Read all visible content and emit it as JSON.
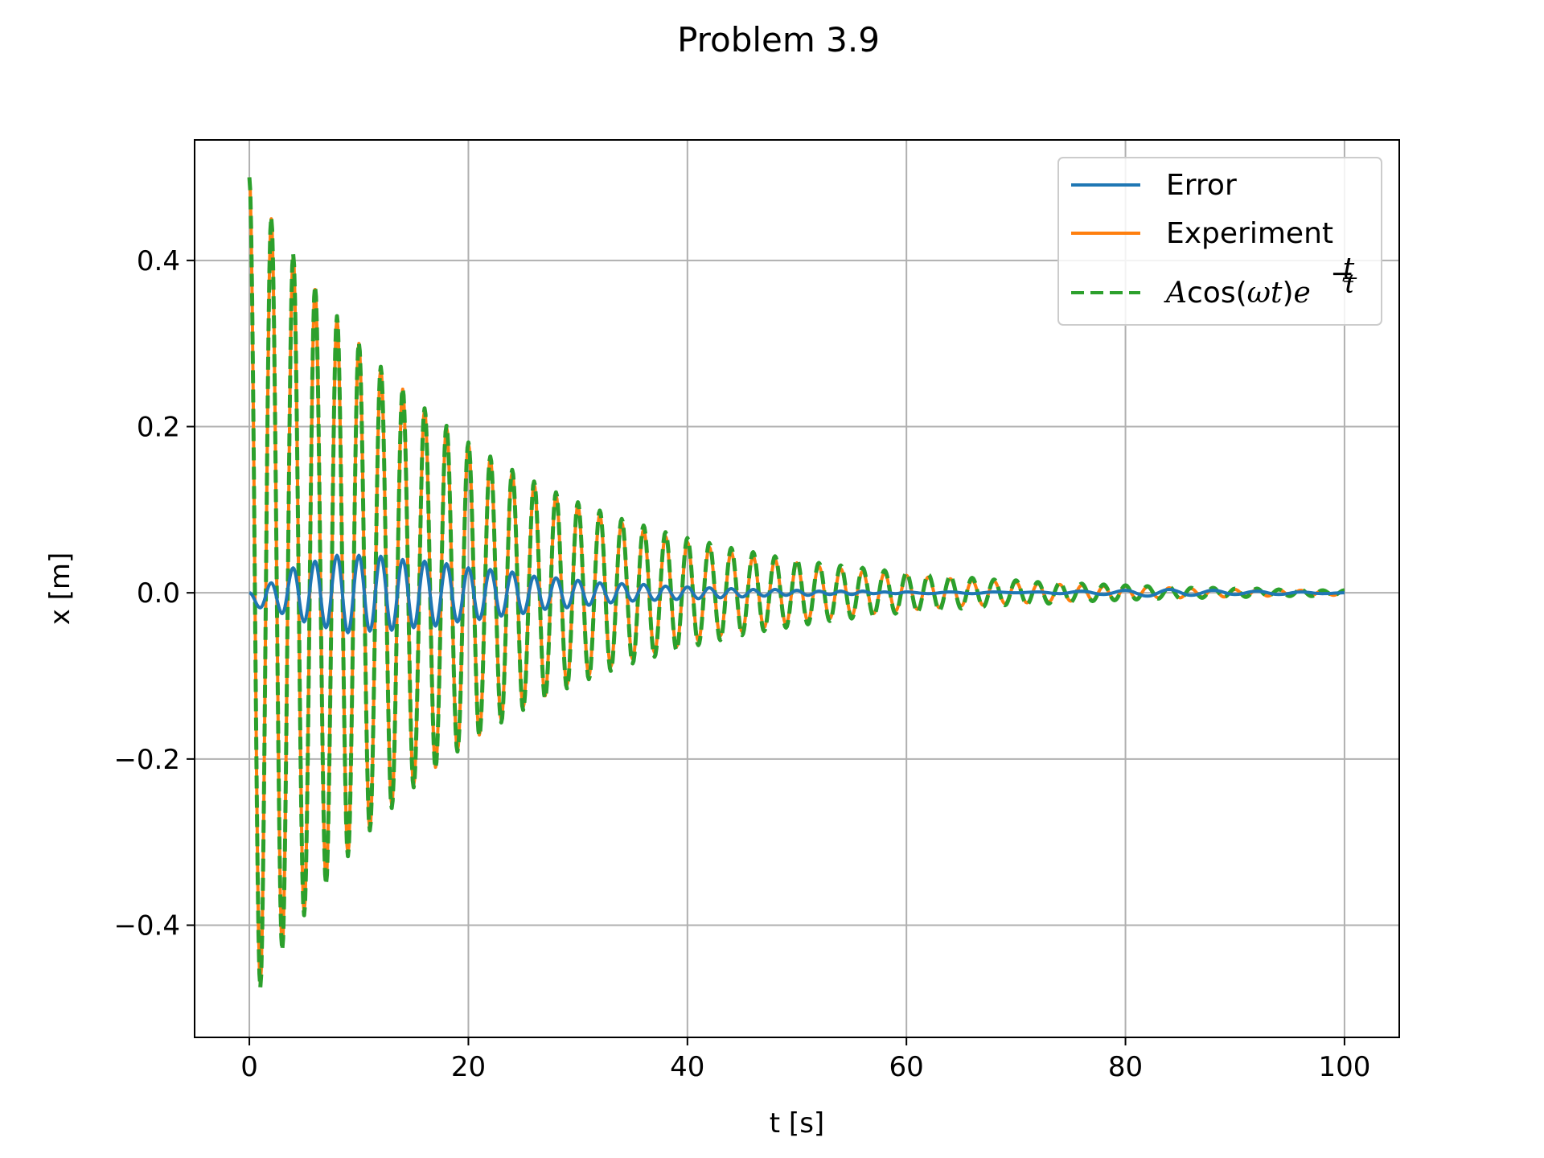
{
  "chart_data": {
    "type": "line",
    "title": "Problem 3.9",
    "xlabel": "t [s]",
    "ylabel": "x [m]",
    "xlim": [
      -5,
      105
    ],
    "ylim": [
      -0.535,
      0.545
    ],
    "xticks": [
      0,
      20,
      40,
      60,
      80,
      100
    ],
    "yticks": [
      -0.4,
      -0.2,
      0.0,
      0.2,
      0.4
    ],
    "xtick_labels": [
      "0",
      "20",
      "40",
      "60",
      "80",
      "100"
    ],
    "ytick_labels": [
      "−0.4",
      "−0.2",
      "0.0",
      "0.2",
      "0.4"
    ],
    "grid": true,
    "legend_position": "top-right",
    "legend": {
      "error": "Error",
      "experiment": "Experiment",
      "model_A": "A",
      "model_cos": "cos(",
      "model_omega": "ωt",
      "model_close": ")",
      "model_e": "e",
      "model_minus": "−",
      "model_t": "t",
      "model_tau": "τ"
    },
    "series": [
      {
        "name": "Error",
        "color": "#1f77b4",
        "style": "solid",
        "x": [
          0,
          1,
          2,
          3,
          4,
          5,
          6,
          7,
          8,
          9,
          10,
          11,
          12,
          13,
          14,
          15,
          16,
          17,
          18,
          19,
          20,
          21,
          22,
          23,
          24,
          25,
          26,
          27,
          28,
          29,
          30,
          31,
          32,
          33,
          34,
          35,
          36,
          37,
          38,
          39,
          40,
          41,
          42,
          43,
          44,
          45,
          46,
          47,
          48,
          49,
          50,
          51,
          52,
          53,
          54,
          55,
          56,
          57,
          58,
          59,
          60,
          62,
          64,
          66,
          68,
          70,
          72,
          74,
          76,
          78,
          80,
          82,
          84,
          86,
          88,
          90,
          92,
          94,
          96,
          98,
          100
        ],
        "y": [
          0.0,
          -0.018,
          0.012,
          -0.025,
          0.03,
          -0.035,
          0.038,
          -0.042,
          0.045,
          -0.048,
          0.045,
          -0.046,
          0.044,
          -0.045,
          0.04,
          -0.042,
          0.038,
          -0.04,
          0.035,
          -0.035,
          0.03,
          -0.032,
          0.028,
          -0.028,
          0.025,
          -0.025,
          0.02,
          -0.02,
          0.018,
          -0.018,
          0.015,
          -0.015,
          0.012,
          -0.012,
          0.011,
          -0.01,
          0.01,
          -0.009,
          0.008,
          -0.008,
          0.007,
          -0.007,
          0.006,
          -0.006,
          0.005,
          -0.005,
          0.004,
          -0.004,
          0.004,
          -0.003,
          0.003,
          -0.003,
          0.002,
          -0.002,
          0.002,
          -0.002,
          0.002,
          -0.001,
          0.001,
          -0.001,
          0.001,
          -0.001,
          0.001,
          -0.001,
          0.001,
          0.0,
          0.001,
          -0.001,
          0.002,
          -0.002,
          0.003,
          -0.004,
          0.004,
          -0.003,
          0.003,
          -0.002,
          0.002,
          -0.002,
          0.001,
          -0.001,
          0.0
        ]
      },
      {
        "name": "Experiment",
        "color": "#ff7f0e",
        "style": "solid",
        "x": [
          0,
          1,
          2,
          3,
          4,
          5,
          6,
          7,
          8,
          9,
          10,
          11,
          12,
          13,
          14,
          15,
          16,
          17,
          18,
          19,
          20,
          21,
          22,
          23,
          24,
          25,
          26,
          27,
          28,
          29,
          30,
          31,
          32,
          33,
          34,
          35,
          36,
          37,
          38,
          39,
          40,
          41,
          42,
          43,
          44,
          45,
          46,
          47,
          48,
          49,
          50,
          51,
          52,
          53,
          54,
          55,
          56,
          57,
          58,
          59,
          60,
          61,
          62,
          63,
          64,
          65,
          66,
          67,
          68,
          69,
          70,
          71,
          72,
          73,
          74,
          75,
          76,
          77,
          78,
          79,
          80,
          81,
          82,
          83,
          84,
          85,
          86,
          87,
          88,
          89,
          90,
          91,
          92,
          93,
          94,
          95,
          96,
          97,
          98,
          99,
          100
        ],
        "y": [
          0.5,
          -0.47,
          0.45,
          -0.425,
          0.405,
          -0.385,
          0.365,
          -0.345,
          0.33,
          -0.315,
          0.3,
          -0.285,
          0.27,
          -0.255,
          0.245,
          -0.232,
          0.22,
          -0.21,
          0.2,
          -0.19,
          0.18,
          -0.171,
          0.162,
          -0.153,
          0.145,
          -0.138,
          0.131,
          -0.124,
          0.117,
          -0.111,
          0.105,
          -0.1,
          0.094,
          -0.089,
          0.085,
          -0.08,
          0.076,
          -0.072,
          0.068,
          -0.065,
          0.061,
          -0.058,
          0.055,
          -0.052,
          0.049,
          -0.047,
          0.044,
          -0.042,
          0.04,
          -0.038,
          0.036,
          -0.034,
          0.032,
          -0.031,
          0.029,
          -0.028,
          0.026,
          -0.025,
          0.024,
          -0.022,
          0.021,
          -0.02,
          0.019,
          -0.018,
          0.017,
          -0.016,
          0.015,
          -0.015,
          0.014,
          -0.013,
          0.013,
          -0.012,
          0.011,
          -0.011,
          0.01,
          -0.01,
          0.009,
          -0.009,
          0.008,
          -0.008,
          0.008,
          -0.007,
          0.007,
          -0.006,
          0.006,
          -0.006,
          0.005,
          -0.005,
          0.005,
          -0.005,
          0.004,
          -0.004,
          0.004,
          -0.004,
          0.004,
          -0.003,
          0.003,
          -0.003,
          0.003,
          -0.003,
          0.003
        ]
      },
      {
        "name": "Acos(ωt)e^(−t/τ)",
        "color": "#2ca02c",
        "style": "dashed",
        "x": [
          0,
          1,
          2,
          3,
          4,
          5,
          6,
          7,
          8,
          9,
          10,
          11,
          12,
          13,
          14,
          15,
          16,
          17,
          18,
          19,
          20,
          21,
          22,
          23,
          24,
          25,
          26,
          27,
          28,
          29,
          30,
          31,
          32,
          33,
          34,
          35,
          36,
          37,
          38,
          39,
          40,
          41,
          42,
          43,
          44,
          45,
          46,
          47,
          48,
          49,
          50,
          51,
          52,
          53,
          54,
          55,
          56,
          57,
          58,
          59,
          60,
          61,
          62,
          63,
          64,
          65,
          66,
          67,
          68,
          69,
          70,
          71,
          72,
          73,
          74,
          75,
          76,
          77,
          78,
          79,
          80,
          81,
          82,
          83,
          84,
          85,
          86,
          87,
          88,
          89,
          90,
          91,
          92,
          93,
          94,
          95,
          96,
          97,
          98,
          99,
          100
        ],
        "y": [
          0.5,
          -0.475,
          0.452,
          -0.43,
          0.408,
          -0.388,
          0.369,
          -0.351,
          0.333,
          -0.317,
          0.301,
          -0.286,
          0.272,
          -0.259,
          0.246,
          -0.234,
          0.222,
          -0.211,
          0.201,
          -0.191,
          0.181,
          -0.172,
          0.164,
          -0.156,
          0.148,
          -0.141,
          0.134,
          -0.127,
          0.121,
          -0.115,
          0.109,
          -0.104,
          0.099,
          -0.094,
          0.089,
          -0.085,
          0.081,
          -0.077,
          0.073,
          -0.069,
          0.066,
          -0.063,
          0.06,
          -0.057,
          0.054,
          -0.051,
          0.049,
          -0.046,
          0.044,
          -0.042,
          0.04,
          -0.038,
          0.036,
          -0.034,
          0.033,
          -0.031,
          0.03,
          -0.028,
          0.027,
          -0.025,
          0.024,
          -0.023,
          0.022,
          -0.021,
          0.02,
          -0.019,
          0.018,
          -0.017,
          0.016,
          -0.015,
          0.015,
          -0.014,
          0.013,
          -0.013,
          0.012,
          -0.011,
          0.011,
          -0.01,
          0.01,
          -0.009,
          0.009,
          -0.008,
          0.008,
          -0.007,
          0.007,
          -0.007,
          0.006,
          -0.006,
          0.006,
          -0.005,
          0.005,
          -0.005,
          0.005,
          -0.004,
          0.004,
          -0.004,
          0.004,
          -0.004,
          0.003,
          -0.003,
          0.003
        ]
      }
    ]
  }
}
